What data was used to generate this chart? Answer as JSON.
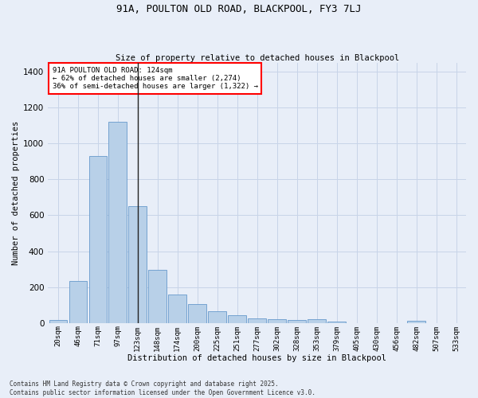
{
  "title": "91A, POULTON OLD ROAD, BLACKPOOL, FY3 7LJ",
  "subtitle": "Size of property relative to detached houses in Blackpool",
  "xlabel": "Distribution of detached houses by size in Blackpool",
  "ylabel": "Number of detached properties",
  "bar_color": "#b8d0e8",
  "bar_edge_color": "#6699cc",
  "background_color": "#e8eef8",
  "annotation_text": "91A POULTON OLD ROAD: 124sqm\n← 62% of detached houses are smaller (2,274)\n36% of semi-detached houses are larger (1,322) →",
  "vline_x_idx": 4,
  "vline_color": "#222222",
  "categories": [
    "20sqm",
    "46sqm",
    "71sqm",
    "97sqm",
    "123sqm",
    "148sqm",
    "174sqm",
    "200sqm",
    "225sqm",
    "251sqm",
    "277sqm",
    "302sqm",
    "328sqm",
    "353sqm",
    "379sqm",
    "405sqm",
    "430sqm",
    "456sqm",
    "482sqm",
    "507sqm",
    "533sqm"
  ],
  "values": [
    15,
    232,
    930,
    1120,
    650,
    298,
    160,
    105,
    65,
    42,
    25,
    20,
    18,
    20,
    10,
    0,
    0,
    0,
    14,
    0,
    0
  ],
  "ylim": [
    0,
    1450
  ],
  "yticks": [
    0,
    200,
    400,
    600,
    800,
    1000,
    1200,
    1400
  ],
  "footnote": "Contains HM Land Registry data © Crown copyright and database right 2025.\nContains public sector information licensed under the Open Government Licence v3.0.",
  "grid_color": "#c8d4e8"
}
